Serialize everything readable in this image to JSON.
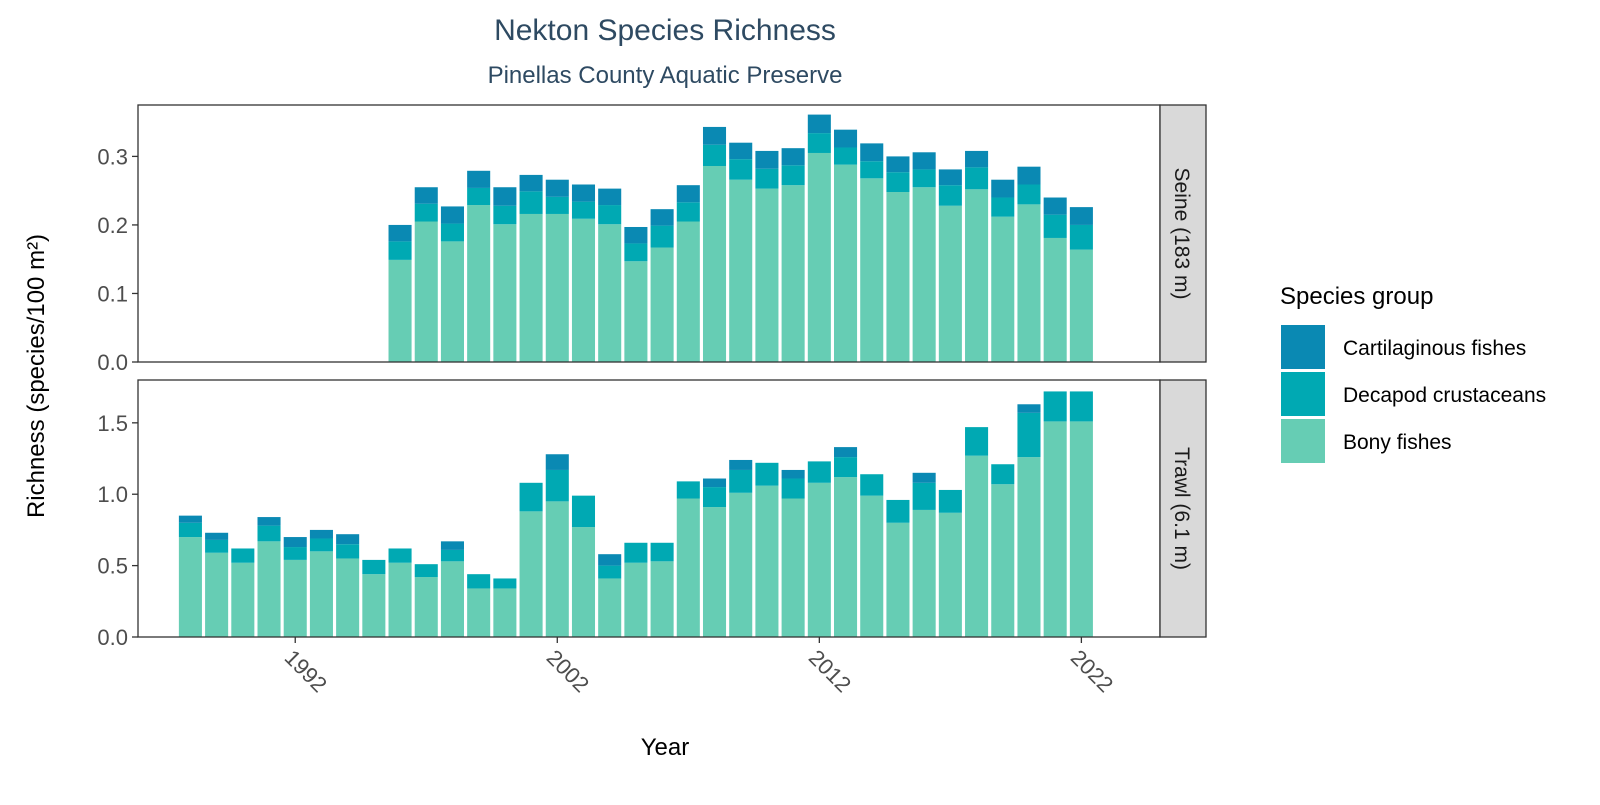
{
  "chart_data": {
    "type": "bar",
    "stacked": true,
    "title": "Nekton Species Richness",
    "subtitle": "Pinellas County Aquatic Preserve",
    "xlabel": "Year",
    "ylabel": "Richness (species/100 m²)",
    "xlim": [
      1986,
      2025
    ],
    "x_ticks": [
      1992,
      2002,
      2012,
      2022
    ],
    "x_tick_labels": [
      "1992",
      "2002",
      "2012",
      "2022"
    ],
    "legend": {
      "title": "Species group",
      "position": "right",
      "entries": [
        "Cartilaginous fishes",
        "Decapod crustaceans",
        "Bony fishes"
      ]
    },
    "colors": {
      "Bony fishes": "#66CDB4",
      "Decapod crustaceans": "#00A9B3",
      "Cartilaginous fishes": "#0A89B3",
      "panel_border": "#333333",
      "strip_fill": "#D9D9D9",
      "title": "#2E4A62"
    },
    "panels": [
      {
        "strip": "Seine (183 m)",
        "ylim": [
          0,
          0.375
        ],
        "yticks": [
          0.0,
          0.1,
          0.2,
          0.3
        ],
        "ytick_labels": [
          "0.0",
          "0.1",
          "0.2",
          "0.3"
        ],
        "x": [
          1996,
          1997,
          1998,
          1999,
          2000,
          2001,
          2002,
          2003,
          2004,
          2005,
          2006,
          2007,
          2008,
          2009,
          2010,
          2011,
          2012,
          2013,
          2014,
          2015,
          2016,
          2017,
          2018,
          2019,
          2020,
          2021,
          2022
        ],
        "series": [
          {
            "name": "Bony fishes",
            "values": [
              0.149,
              0.205,
              0.176,
              0.229,
              0.201,
              0.216,
              0.216,
              0.209,
              0.201,
              0.147,
              0.167,
              0.205,
              0.286,
              0.266,
              0.253,
              0.258,
              0.305,
              0.288,
              0.268,
              0.248,
              0.255,
              0.228,
              0.252,
              0.212,
              0.23,
              0.181,
              0.164
            ]
          },
          {
            "name": "Decapod crustaceans",
            "values": [
              0.027,
              0.026,
              0.026,
              0.025,
              0.027,
              0.033,
              0.025,
              0.025,
              0.028,
              0.026,
              0.032,
              0.028,
              0.031,
              0.03,
              0.029,
              0.029,
              0.029,
              0.025,
              0.025,
              0.029,
              0.026,
              0.03,
              0.032,
              0.028,
              0.029,
              0.034,
              0.036
            ]
          },
          {
            "name": "Cartilaginous fishes",
            "values": [
              0.024,
              0.024,
              0.025,
              0.025,
              0.027,
              0.024,
              0.025,
              0.025,
              0.024,
              0.024,
              0.024,
              0.025,
              0.026,
              0.024,
              0.026,
              0.025,
              0.027,
              0.026,
              0.026,
              0.023,
              0.025,
              0.023,
              0.024,
              0.026,
              0.026,
              0.025,
              0.026
            ]
          }
        ]
      },
      {
        "strip": "Trawl (6.1 m)",
        "ylim": [
          0,
          1.8
        ],
        "yticks": [
          0.0,
          0.5,
          1.0,
          1.5
        ],
        "ytick_labels": [
          "0.0",
          "0.5",
          "1.0",
          "1.5"
        ],
        "x": [
          1988,
          1989,
          1990,
          1991,
          1992,
          1993,
          1994,
          1995,
          1996,
          1997,
          1998,
          1999,
          2000,
          2001,
          2002,
          2003,
          2004,
          2005,
          2006,
          2007,
          2008,
          2009,
          2010,
          2011,
          2012,
          2013,
          2014,
          2015,
          2016,
          2017,
          2018,
          2019,
          2020,
          2021,
          2022
        ],
        "series": [
          {
            "name": "Bony fishes",
            "values": [
              0.7,
              0.59,
              0.52,
              0.67,
              0.54,
              0.6,
              0.55,
              0.44,
              0.52,
              0.42,
              0.53,
              0.34,
              0.34,
              0.88,
              0.95,
              0.77,
              0.41,
              0.52,
              0.53,
              0.97,
              0.91,
              1.01,
              1.06,
              0.97,
              1.08,
              1.12,
              0.99,
              0.8,
              0.89,
              0.87,
              1.27,
              1.07,
              1.26,
              1.51,
              1.51
            ]
          },
          {
            "name": "Decapod crustaceans",
            "values": [
              0.1,
              0.09,
              0.1,
              0.11,
              0.09,
              0.09,
              0.1,
              0.1,
              0.1,
              0.09,
              0.08,
              0.1,
              0.07,
              0.2,
              0.22,
              0.22,
              0.09,
              0.14,
              0.13,
              0.12,
              0.14,
              0.16,
              0.16,
              0.14,
              0.15,
              0.14,
              0.15,
              0.16,
              0.19,
              0.16,
              0.2,
              0.14,
              0.31,
              0.21,
              0.21
            ]
          },
          {
            "name": "Cartilaginous fishes",
            "values": [
              0.05,
              0.05,
              0.0,
              0.06,
              0.07,
              0.06,
              0.07,
              0.0,
              0.0,
              0.0,
              0.06,
              0.0,
              0.0,
              0.0,
              0.11,
              0.0,
              0.08,
              0.0,
              0.0,
              0.0,
              0.06,
              0.07,
              0.0,
              0.06,
              0.0,
              0.07,
              0.0,
              0.0,
              0.07,
              0.0,
              0.0,
              0.0,
              0.06,
              0.0,
              0.0
            ]
          }
        ]
      }
    ]
  }
}
